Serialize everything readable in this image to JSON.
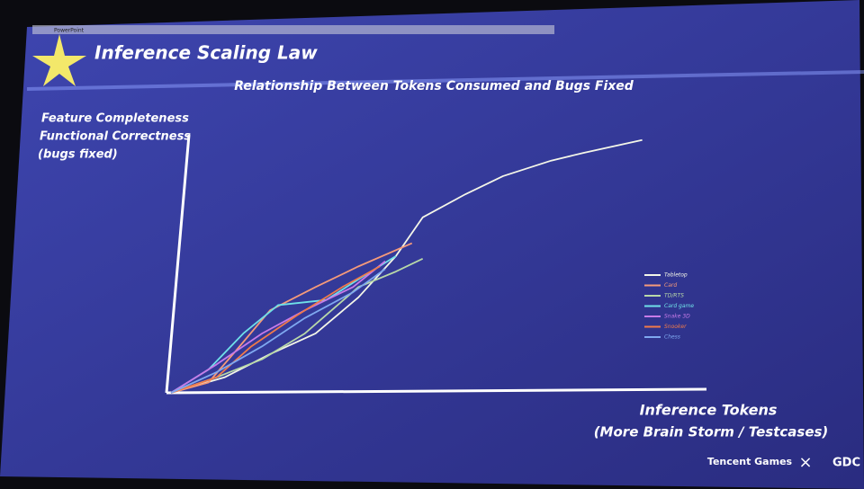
{
  "slide": {
    "app_name": "PowerPoint",
    "title": "Inference Scaling Law",
    "footer_brand": "Tencent Games",
    "footer_separator": "×",
    "footer_event": "GDC"
  },
  "chart_data": {
    "type": "line",
    "title": "Relationship Between Tokens Consumed and Bugs Fixed",
    "y_label": [
      "Feature Completeness",
      "Functional Correctness",
      "(bugs fixed)"
    ],
    "x_label": [
      "Inference Tokens",
      "(More Brain Storm / Testcases)"
    ],
    "xlim": [
      0,
      100
    ],
    "ylim": [
      0,
      100
    ],
    "legend": "right",
    "series": [
      {
        "name": "Tabletop",
        "color": "#f4f6e8",
        "x": [
          0,
          10,
          18.5,
          27,
          35,
          42,
          47,
          55,
          62,
          71,
          77,
          88
        ],
        "values": [
          0,
          6,
          15,
          23,
          37,
          53,
          68,
          77,
          84,
          90,
          93,
          98
        ]
      },
      {
        "name": "Card",
        "color": "#f59a7a",
        "x": [
          0,
          7,
          12,
          18.5,
          27,
          35,
          45
        ],
        "values": [
          0,
          4,
          16,
          32,
          41,
          49,
          58
        ]
      },
      {
        "name": "TD/RTS",
        "color": "#b8d8a8",
        "x": [
          0,
          8.5,
          17,
          25,
          35,
          42,
          47
        ],
        "values": [
          0,
          6,
          13,
          23,
          41,
          47,
          52
        ]
      },
      {
        "name": "Card game",
        "color": "#6fe0e8",
        "x": [
          0,
          7,
          13.5,
          20,
          29,
          35,
          42
        ],
        "values": [
          0,
          9,
          23,
          34,
          36,
          44,
          53
        ]
      },
      {
        "name": "Snake 3D",
        "color": "#c77be8",
        "x": [
          0,
          8.5,
          17,
          25,
          34,
          40
        ],
        "values": [
          0,
          11,
          23,
          32,
          41,
          51
        ]
      },
      {
        "name": "Snooker",
        "color": "#f07a4a",
        "x": [
          0,
          8.5,
          15,
          23.5,
          32,
          39
        ],
        "values": [
          0,
          6,
          18,
          30,
          41,
          49
        ]
      },
      {
        "name": "Chess",
        "color": "#7fa8f0",
        "x": [
          0,
          8.5,
          17,
          25,
          34,
          40
        ],
        "values": [
          0,
          8,
          18,
          29,
          39,
          48
        ]
      }
    ]
  }
}
